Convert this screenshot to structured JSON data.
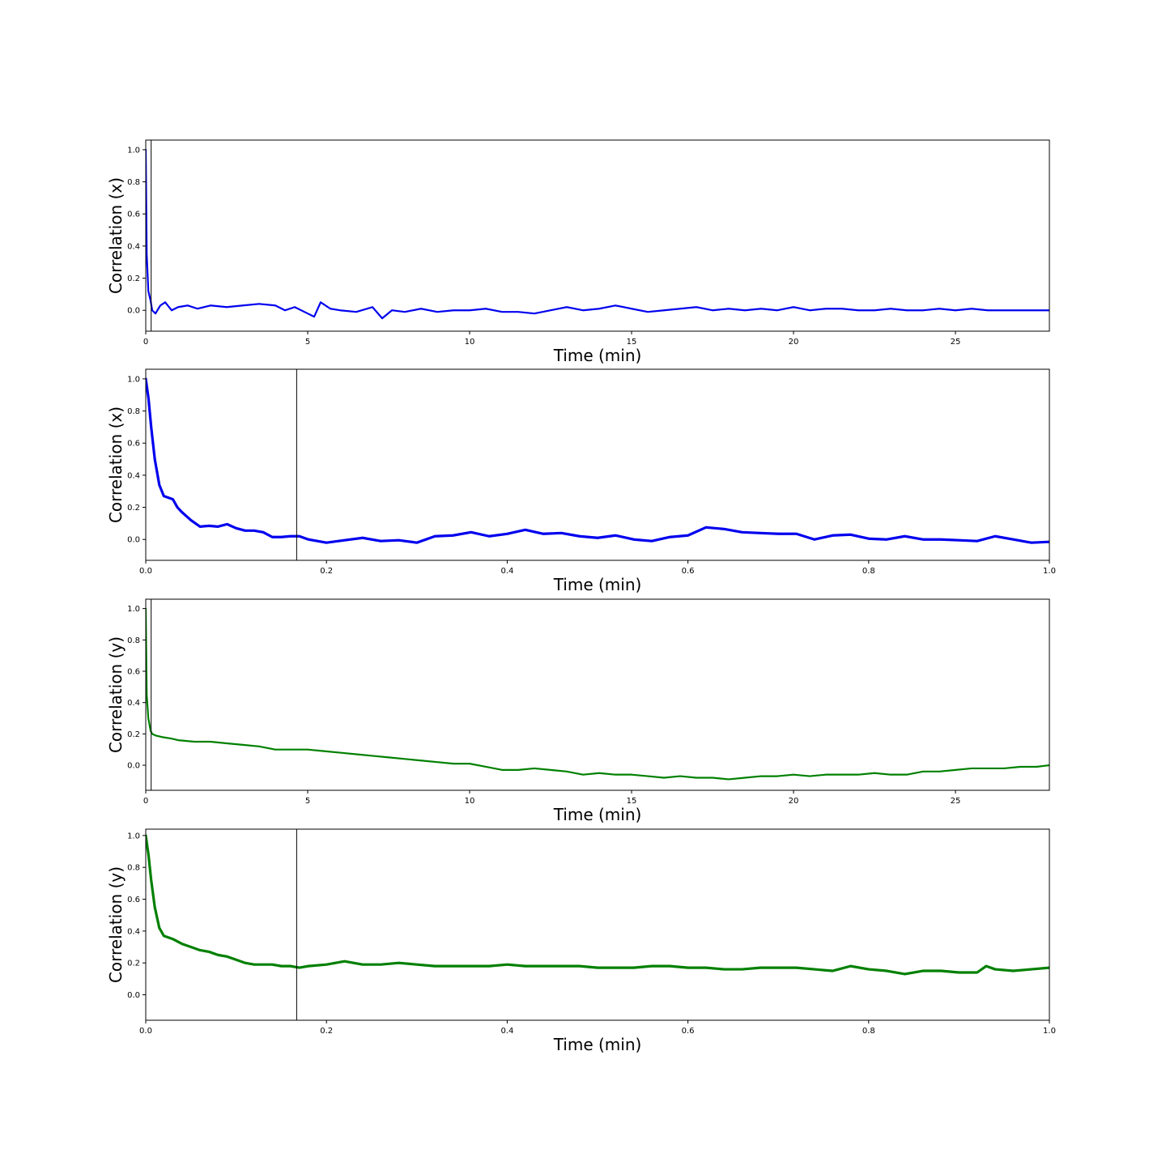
{
  "chart_data": [
    {
      "type": "line",
      "xlabel": "Time (min)",
      "ylabel": "Correlation (x)",
      "xlim": [
        0,
        27.9
      ],
      "ylim": [
        -0.13,
        1.06
      ],
      "xticks": [
        0,
        5,
        10,
        15,
        20,
        25
      ],
      "xtick_labels": [
        "0",
        "5",
        "10",
        "15",
        "20",
        "25"
      ],
      "yticks": [
        0.0,
        0.2,
        0.4,
        0.6,
        0.8,
        1.0
      ],
      "ytick_labels": [
        "0.0",
        "0.2",
        "0.4",
        "0.6",
        "0.8",
        "1.0"
      ],
      "vline_x": 0.167,
      "grid": false,
      "color": "#0000ee",
      "series": [
        {
          "x": [
            0,
            0.03,
            0.08,
            0.15,
            0.2,
            0.3,
            0.45,
            0.6,
            0.8,
            1.0,
            1.3,
            1.6,
            2.0,
            2.5,
            3.0,
            3.5,
            4.0,
            4.3,
            4.6,
            5.0,
            5.2,
            5.4,
            5.7,
            6.0,
            6.5,
            7.0,
            7.3,
            7.6,
            8.0,
            8.5,
            9.0,
            9.5,
            10.0,
            10.5,
            11.0,
            11.5,
            12.0,
            12.5,
            13.0,
            13.5,
            14.0,
            14.5,
            15.0,
            15.5,
            16.0,
            16.5,
            17.0,
            17.5,
            18.0,
            18.5,
            19.0,
            19.5,
            20.0,
            20.5,
            21.0,
            21.5,
            22.0,
            22.5,
            23.0,
            23.5,
            24.0,
            24.5,
            25.0,
            25.5,
            26.0,
            26.5,
            27.0,
            27.5,
            27.9
          ],
          "y": [
            1.0,
            0.35,
            0.12,
            0.06,
            0.0,
            -0.02,
            0.03,
            0.05,
            0.0,
            0.02,
            0.03,
            0.01,
            0.03,
            0.02,
            0.03,
            0.04,
            0.03,
            0.0,
            0.02,
            -0.02,
            -0.04,
            0.05,
            0.01,
            0.0,
            -0.01,
            0.02,
            -0.05,
            0.0,
            -0.01,
            0.01,
            -0.01,
            0.0,
            0.0,
            0.01,
            -0.01,
            -0.01,
            -0.02,
            0.0,
            0.02,
            0.0,
            0.01,
            0.03,
            0.01,
            -0.01,
            0.0,
            0.01,
            0.02,
            0.0,
            0.01,
            0.0,
            0.01,
            0.0,
            0.02,
            0.0,
            0.01,
            0.01,
            0.0,
            0.0,
            0.01,
            0.0,
            0.0,
            0.01,
            0.0,
            0.01,
            0.0,
            0.0,
            0.0,
            0.0,
            0.0
          ]
        }
      ]
    },
    {
      "type": "line",
      "xlabel": "Time (min)",
      "ylabel": "Correlation (x)",
      "xlim": [
        0,
        1.0
      ],
      "ylim": [
        -0.13,
        1.06
      ],
      "xticks": [
        0.0,
        0.2,
        0.4,
        0.6,
        0.8,
        1.0
      ],
      "xtick_labels": [
        "0.0",
        "0.2",
        "0.4",
        "0.6",
        "0.8",
        "1.0"
      ],
      "yticks": [
        0.0,
        0.2,
        0.4,
        0.6,
        0.8,
        1.0
      ],
      "ytick_labels": [
        "0.0",
        "0.2",
        "0.4",
        "0.6",
        "0.8",
        "1.0"
      ],
      "vline_x": 0.167,
      "grid": false,
      "color": "#0000ee",
      "series": [
        {
          "x": [
            0,
            0.003,
            0.006,
            0.01,
            0.015,
            0.02,
            0.03,
            0.035,
            0.04,
            0.05,
            0.06,
            0.07,
            0.08,
            0.09,
            0.1,
            0.11,
            0.12,
            0.13,
            0.14,
            0.15,
            0.16,
            0.17,
            0.18,
            0.2,
            0.22,
            0.24,
            0.26,
            0.28,
            0.3,
            0.32,
            0.34,
            0.36,
            0.38,
            0.4,
            0.42,
            0.44,
            0.46,
            0.48,
            0.5,
            0.52,
            0.54,
            0.56,
            0.58,
            0.6,
            0.62,
            0.64,
            0.66,
            0.68,
            0.7,
            0.72,
            0.74,
            0.76,
            0.78,
            0.8,
            0.82,
            0.84,
            0.86,
            0.88,
            0.9,
            0.92,
            0.94,
            0.96,
            0.98,
            1.0
          ],
          "y": [
            1.0,
            0.88,
            0.7,
            0.5,
            0.34,
            0.27,
            0.25,
            0.2,
            0.17,
            0.12,
            0.08,
            0.085,
            0.08,
            0.095,
            0.07,
            0.055,
            0.055,
            0.045,
            0.015,
            0.015,
            0.02,
            0.02,
            0.0,
            -0.02,
            -0.005,
            0.01,
            -0.01,
            -0.005,
            -0.02,
            0.02,
            0.025,
            0.045,
            0.02,
            0.035,
            0.06,
            0.035,
            0.04,
            0.02,
            0.01,
            0.025,
            0.0,
            -0.01,
            0.015,
            0.025,
            0.075,
            0.065,
            0.045,
            0.04,
            0.035,
            0.035,
            0.0,
            0.025,
            0.03,
            0.005,
            0.0,
            0.02,
            0.0,
            0.0,
            -0.005,
            -0.01,
            0.02,
            0.0,
            -0.02,
            -0.015
          ]
        }
      ]
    },
    {
      "type": "line",
      "xlabel": "Time (min)",
      "ylabel": "Correlation (y)",
      "xlim": [
        0,
        27.9
      ],
      "ylim": [
        -0.16,
        1.06
      ],
      "xticks": [
        0,
        5,
        10,
        15,
        20,
        25
      ],
      "xtick_labels": [
        "0",
        "5",
        "10",
        "15",
        "20",
        "25"
      ],
      "yticks": [
        0.0,
        0.2,
        0.4,
        0.6,
        0.8,
        1.0
      ],
      "ytick_labels": [
        "0.0",
        "0.2",
        "0.4",
        "0.6",
        "0.8",
        "1.0"
      ],
      "vline_x": 0.167,
      "grid": false,
      "color": "#008000",
      "series": [
        {
          "x": [
            0,
            0.03,
            0.08,
            0.15,
            0.2,
            0.3,
            0.5,
            0.8,
            1.0,
            1.5,
            2.0,
            2.5,
            3.0,
            3.5,
            4.0,
            4.5,
            5.0,
            5.5,
            6.0,
            6.5,
            7.0,
            7.5,
            8.0,
            8.5,
            9.0,
            9.5,
            10.0,
            10.5,
            11.0,
            11.5,
            12.0,
            12.5,
            13.0,
            13.5,
            14.0,
            14.5,
            15.0,
            15.5,
            16.0,
            16.5,
            17.0,
            17.5,
            18.0,
            18.5,
            19.0,
            19.5,
            20.0,
            20.5,
            21.0,
            21.5,
            22.0,
            22.5,
            23.0,
            23.5,
            24.0,
            24.5,
            25.0,
            25.5,
            26.0,
            26.5,
            27.0,
            27.5,
            27.9
          ],
          "y": [
            1.0,
            0.45,
            0.3,
            0.22,
            0.2,
            0.19,
            0.18,
            0.17,
            0.16,
            0.15,
            0.15,
            0.14,
            0.13,
            0.12,
            0.1,
            0.1,
            0.1,
            0.09,
            0.08,
            0.07,
            0.06,
            0.05,
            0.04,
            0.03,
            0.02,
            0.01,
            0.01,
            -0.01,
            -0.03,
            -0.03,
            -0.02,
            -0.03,
            -0.04,
            -0.06,
            -0.05,
            -0.06,
            -0.06,
            -0.07,
            -0.08,
            -0.07,
            -0.08,
            -0.08,
            -0.09,
            -0.08,
            -0.07,
            -0.07,
            -0.06,
            -0.07,
            -0.06,
            -0.06,
            -0.06,
            -0.05,
            -0.06,
            -0.06,
            -0.04,
            -0.04,
            -0.03,
            -0.02,
            -0.02,
            -0.02,
            -0.01,
            -0.01,
            0.0
          ]
        }
      ]
    },
    {
      "type": "line",
      "xlabel": "Time (min)",
      "ylabel": "Correlation (y)",
      "xlim": [
        0,
        1.0
      ],
      "ylim": [
        -0.16,
        1.04
      ],
      "xticks": [
        0.0,
        0.2,
        0.4,
        0.6,
        0.8,
        1.0
      ],
      "xtick_labels": [
        "0.0",
        "0.2",
        "0.4",
        "0.6",
        "0.8",
        "1.0"
      ],
      "yticks": [
        0.0,
        0.2,
        0.4,
        0.6,
        0.8,
        1.0
      ],
      "ytick_labels": [
        "0.0",
        "0.2",
        "0.4",
        "0.6",
        "0.8",
        "1.0"
      ],
      "vline_x": 0.167,
      "grid": false,
      "color": "#008000",
      "series": [
        {
          "x": [
            0,
            0.003,
            0.006,
            0.01,
            0.015,
            0.02,
            0.025,
            0.03,
            0.04,
            0.05,
            0.06,
            0.07,
            0.08,
            0.09,
            0.1,
            0.11,
            0.12,
            0.13,
            0.14,
            0.15,
            0.16,
            0.17,
            0.18,
            0.2,
            0.22,
            0.24,
            0.26,
            0.28,
            0.3,
            0.32,
            0.34,
            0.36,
            0.38,
            0.4,
            0.42,
            0.44,
            0.46,
            0.48,
            0.5,
            0.52,
            0.54,
            0.56,
            0.58,
            0.6,
            0.62,
            0.64,
            0.66,
            0.68,
            0.7,
            0.72,
            0.74,
            0.76,
            0.78,
            0.8,
            0.82,
            0.84,
            0.86,
            0.88,
            0.9,
            0.92,
            0.93,
            0.94,
            0.96,
            0.98,
            1.0
          ],
          "y": [
            1.0,
            0.88,
            0.72,
            0.55,
            0.42,
            0.37,
            0.36,
            0.35,
            0.32,
            0.3,
            0.28,
            0.27,
            0.25,
            0.24,
            0.22,
            0.2,
            0.19,
            0.19,
            0.19,
            0.18,
            0.18,
            0.17,
            0.18,
            0.19,
            0.21,
            0.19,
            0.19,
            0.2,
            0.19,
            0.18,
            0.18,
            0.18,
            0.18,
            0.19,
            0.18,
            0.18,
            0.18,
            0.18,
            0.17,
            0.17,
            0.17,
            0.18,
            0.18,
            0.17,
            0.17,
            0.16,
            0.16,
            0.17,
            0.17,
            0.17,
            0.16,
            0.15,
            0.18,
            0.16,
            0.15,
            0.13,
            0.15,
            0.15,
            0.14,
            0.14,
            0.18,
            0.16,
            0.15,
            0.16,
            0.17
          ]
        }
      ]
    }
  ]
}
